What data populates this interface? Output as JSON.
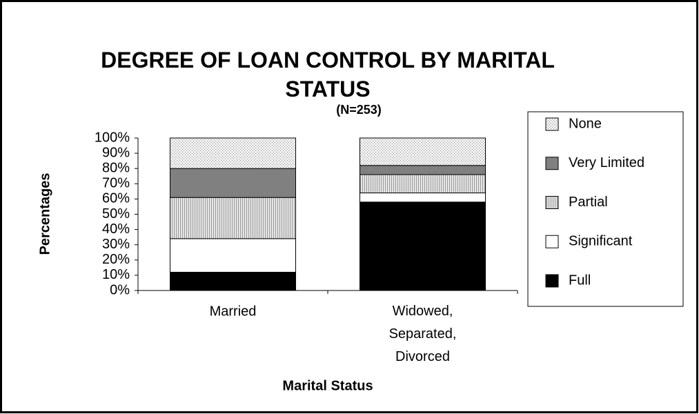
{
  "chart_data": {
    "type": "stacked_bar",
    "title": "DEGREE OF LOAN CONTROL BY MARITAL STATUS",
    "subtitle": "(N=253)",
    "ylabel": "Percentages",
    "xlabel": "Marital Status",
    "categories": [
      "Married",
      "Widowed, Separated, Divorced"
    ],
    "series": [
      {
        "name": "Full",
        "color": "#000000",
        "values": [
          12,
          58
        ]
      },
      {
        "name": "Significant",
        "color": "#ffffff",
        "values": [
          22,
          6
        ]
      },
      {
        "name": "Partial",
        "color": "#b0b0b0",
        "pattern": "stripes",
        "values": [
          27,
          12
        ]
      },
      {
        "name": "Very Limited",
        "color": "#808080",
        "values": [
          19,
          6
        ]
      },
      {
        "name": "None",
        "color": "#e0e0e0",
        "pattern": "dots",
        "values": [
          20,
          18
        ]
      }
    ],
    "ylim": [
      0,
      100
    ],
    "yticks": [
      {
        "value": 0,
        "label": "0%"
      },
      {
        "value": 10,
        "label": "10%"
      },
      {
        "value": 20,
        "label": "20%"
      },
      {
        "value": 30,
        "label": "30%"
      },
      {
        "value": 40,
        "label": "40%"
      },
      {
        "value": 50,
        "label": "50%"
      },
      {
        "value": 60,
        "label": "60%"
      },
      {
        "value": 70,
        "label": "70%"
      },
      {
        "value": 80,
        "label": "80%"
      },
      {
        "value": 90,
        "label": "90%"
      },
      {
        "value": 100,
        "label": "100%"
      }
    ],
    "legend": "right"
  }
}
